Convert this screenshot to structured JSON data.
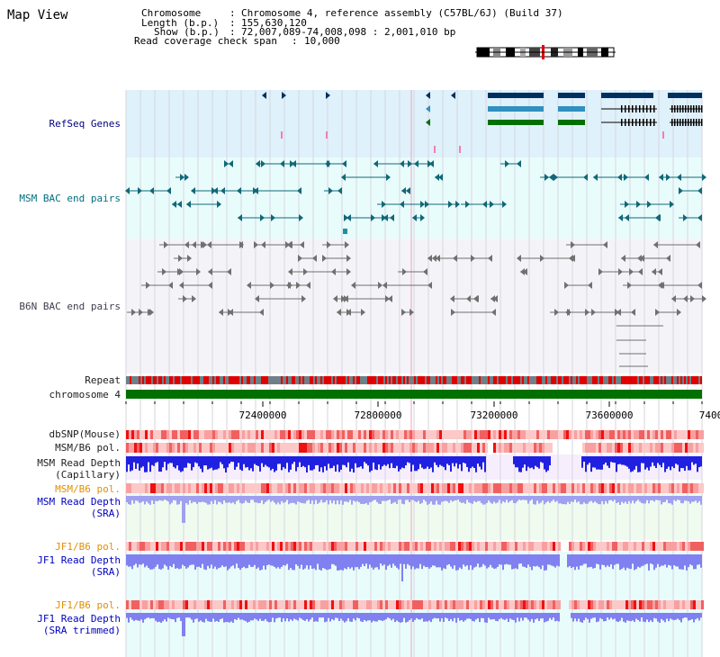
{
  "page": {
    "title": "Map View"
  },
  "info": {
    "chromosome_label": "Chromosome",
    "chromosome_value": "Chromosome 4, reference assembly (C57BL/6J) (Build 37)",
    "length_label": "Length (b.p.)",
    "length_value": "155,630,120",
    "show_label": "Show (b.p.)",
    "show_value": "72,007,089-74,008,098 : 2,001,010 bp",
    "coverage_label": "Read coverage check span",
    "coverage_value": "10,000"
  },
  "tracks": {
    "refseq": "RefSeq Genes",
    "msm_bac": "MSM BAC end pairs",
    "b6n_bac": "B6N BAC end pairs",
    "repeat": "Repeat",
    "chromosome": "chromosome 4",
    "dbsnp": "dbSNP(Mouse)",
    "msm_b6_pol_1": "MSM/B6 pol.",
    "msm_read_depth_cap_1": "MSM Read Depth",
    "msm_read_depth_cap_2": "(Capillary)",
    "msm_b6_pol_2": "MSM/B6 pol.",
    "msm_read_depth_sra_1": "MSM Read Depth",
    "msm_read_depth_sra_2": "(SRA)",
    "jf1_b6_pol_1": "JF1/B6 pol.",
    "jf1_read_depth_sra_1": "JF1 Read Depth",
    "jf1_read_depth_sra_2": "(SRA)",
    "jf1_b6_pol_2": "JF1/B6 pol.",
    "jf1_read_depth_trim_1": "JF1 Read Depth",
    "jf1_read_depth_trim_2": "(SRA trimmed)"
  },
  "axis": {
    "ticks": [
      "72400000",
      "72800000",
      "73200000",
      "73600000",
      "7400"
    ]
  },
  "colors": {
    "refseq_bg": "#dff1fb",
    "msm_bac_bg": "#e9fcfc",
    "b6n_bac_bg": "#f4f4f8",
    "repeat_red": "#e00000",
    "chromosome_green": "#007000",
    "pol_red": "#f04040",
    "depth_blue": "#2020e0",
    "depth_light_blue": "#8080f0",
    "sra_bg": "#effbef",
    "jf1_bg": "#e9fcfc",
    "chromosome_highlight": "#e00000"
  }
}
